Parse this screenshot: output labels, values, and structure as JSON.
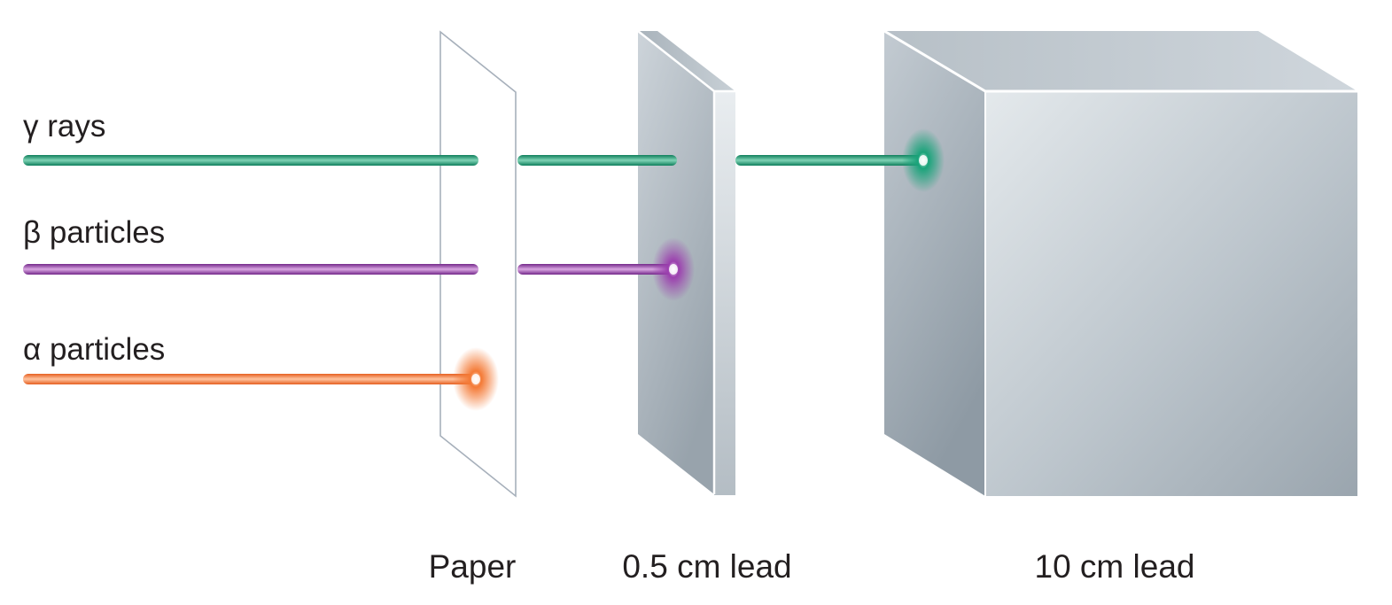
{
  "rays": [
    {
      "id": "gamma",
      "label": "γ rays",
      "color": "#1a9a72",
      "stopped_by": "10 cm lead"
    },
    {
      "id": "beta",
      "label": "β particles",
      "color": "#8e3d9c",
      "stopped_by": "0.5 cm lead"
    },
    {
      "id": "alpha",
      "label": "α particles",
      "color": "#f0773a",
      "stopped_by": "Paper"
    }
  ],
  "barriers": [
    {
      "id": "paper",
      "label": "Paper"
    },
    {
      "id": "lead-thin",
      "label": "0.5 cm lead"
    },
    {
      "id": "lead-thick",
      "label": "10 cm lead"
    }
  ]
}
